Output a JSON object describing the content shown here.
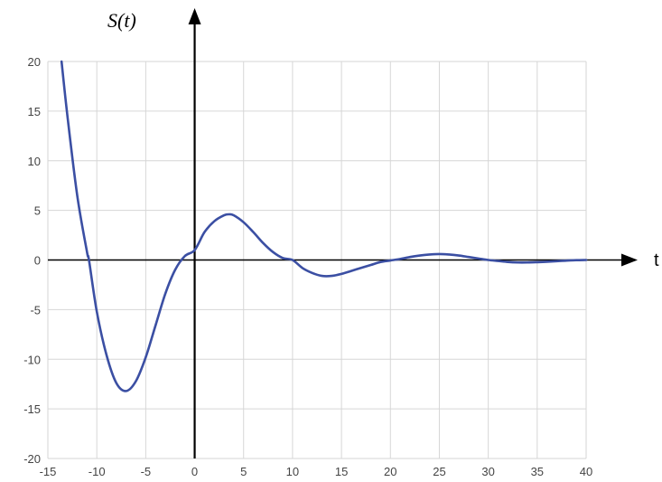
{
  "chart_data": {
    "type": "line",
    "ylabel": "S(t)",
    "xlabel": "t",
    "xlim": [
      -15,
      40
    ],
    "ylim": [
      -20,
      20
    ],
    "x_ticks": [
      -15,
      -10,
      -5,
      0,
      5,
      10,
      15,
      20,
      25,
      30,
      35,
      40
    ],
    "y_ticks": [
      -20,
      -15,
      -10,
      -5,
      0,
      5,
      10,
      15,
      20
    ],
    "x_tick_labels": [
      "-15",
      "-10",
      "-5",
      "0",
      "5",
      "10",
      "15",
      "20",
      "25",
      "30",
      "35",
      "40"
    ],
    "y_tick_labels": [
      "-20",
      "-15",
      "-10",
      "-5",
      "0",
      "5",
      "10",
      "15",
      "20"
    ],
    "grid": true,
    "series": [
      {
        "x": [
          -13.6,
          -13,
          -12,
          -11,
          -10.8,
          -10,
          -9,
          -8,
          -7,
          -6,
          -5,
          -4,
          -3,
          -2,
          -1,
          0,
          1,
          2,
          3,
          3.5,
          4,
          5,
          6,
          7,
          8,
          9,
          10,
          11,
          12,
          13,
          14,
          15,
          16,
          17,
          18,
          19,
          20,
          21,
          22,
          23,
          24,
          25,
          26,
          27,
          28,
          29,
          30,
          31,
          32,
          33,
          34,
          35,
          36,
          37,
          38,
          39,
          40
        ],
        "y": [
          20,
          14.5,
          6.5,
          0.8,
          0,
          -5.2,
          -9.6,
          -12.4,
          -13.2,
          -12.2,
          -9.8,
          -6.6,
          -3.4,
          -1,
          0.4,
          1,
          2.8,
          3.9,
          4.5,
          4.6,
          4.5,
          3.8,
          2.8,
          1.7,
          0.8,
          0.2,
          0,
          -0.8,
          -1.3,
          -1.6,
          -1.6,
          -1.4,
          -1.1,
          -0.8,
          -0.5,
          -0.2,
          -0.05,
          0.1,
          0.3,
          0.45,
          0.55,
          0.6,
          0.55,
          0.45,
          0.3,
          0.15,
          0,
          -0.1,
          -0.2,
          -0.25,
          -0.25,
          -0.22,
          -0.18,
          -0.12,
          -0.06,
          -0.02,
          0
        ],
        "color": "#3b4fa3"
      }
    ]
  }
}
